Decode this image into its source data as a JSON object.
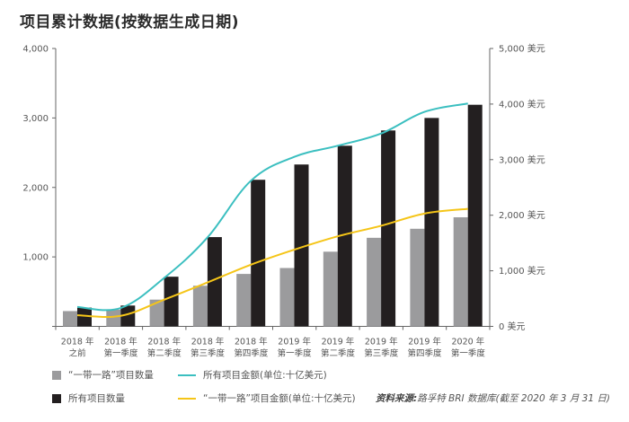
{
  "title": "项目累计数据(按数据生成日期)",
  "colors": {
    "bri_count": "#9b9b9d",
    "all_count": "#231f20",
    "all_value": "#3bbfc0",
    "bri_value": "#f5c518",
    "axis": "#666666"
  },
  "legend": [
    {
      "key": "bri_count",
      "label": "“一带一路”项目数量",
      "type": "box"
    },
    {
      "key": "all_value",
      "label": "所有项目金额(单位:十亿美元)",
      "type": "line"
    },
    {
      "key": "all_count",
      "label": "所有项目数量",
      "type": "box"
    },
    {
      "key": "bri_value",
      "label": "“一带一路”项目金额(单位:十亿美元)",
      "type": "line"
    }
  ],
  "source": {
    "prefix": "资料来源:",
    "text": "路孚特 BRI 数据库(截至 2020 年 3 月 31 日)"
  },
  "chart_data": {
    "type": "bar",
    "title": "项目累计数据(按数据生成日期)",
    "categories": [
      [
        "2018 年",
        "之前"
      ],
      [
        "2018 年",
        "第一季度"
      ],
      [
        "2018 年",
        "第二季度"
      ],
      [
        "2018 年",
        "第三季度"
      ],
      [
        "2018 年",
        "第四季度"
      ],
      [
        "2019 年",
        "第一季度"
      ],
      [
        "2019 年",
        "第二季度"
      ],
      [
        "2019 年",
        "第三季度"
      ],
      [
        "2019 年",
        "第四季度"
      ],
      [
        "2020 年",
        "第一季度"
      ]
    ],
    "y_left": {
      "ticks": [
        0,
        1000,
        2000,
        3000,
        4000
      ],
      "tick_labels": [
        "",
        "1,000",
        "2,000",
        "3,000",
        "4,000"
      ],
      "ylim": [
        0,
        4000
      ]
    },
    "y_right": {
      "ticks": [
        0,
        1000,
        2000,
        3000,
        4000,
        5000
      ],
      "tick_labels": [
        "0 美元",
        "1,000 美元",
        "2,000 美元",
        "3,000 美元",
        "4,000 美元",
        "5,000 美元"
      ],
      "ylim": [
        0,
        5000
      ]
    },
    "series": [
      {
        "key": "bri_count",
        "name": "“一带一路”项目数量",
        "type": "bar",
        "axis": "left",
        "values": [
          220,
          240,
          385,
          585,
          755,
          840,
          1075,
          1275,
          1405,
          1570
        ]
      },
      {
        "key": "all_count",
        "name": "所有项目数量",
        "type": "bar",
        "axis": "left",
        "values": [
          270,
          300,
          715,
          1285,
          2110,
          2330,
          2600,
          2820,
          3000,
          3190
        ]
      },
      {
        "key": "all_value",
        "name": "所有项目金额(单位:十亿美元)",
        "type": "line",
        "axis": "right",
        "values": [
          350,
          330,
          870,
          1600,
          2620,
          3050,
          3250,
          3470,
          3860,
          4010
        ]
      },
      {
        "key": "bri_value",
        "name": "“一带一路”项目金额(单位:十亿美元)",
        "type": "line",
        "axis": "right",
        "values": [
          200,
          190,
          480,
          790,
          1110,
          1380,
          1620,
          1810,
          2030,
          2115
        ]
      }
    ],
    "grid": false,
    "legend_position": "bottom"
  }
}
